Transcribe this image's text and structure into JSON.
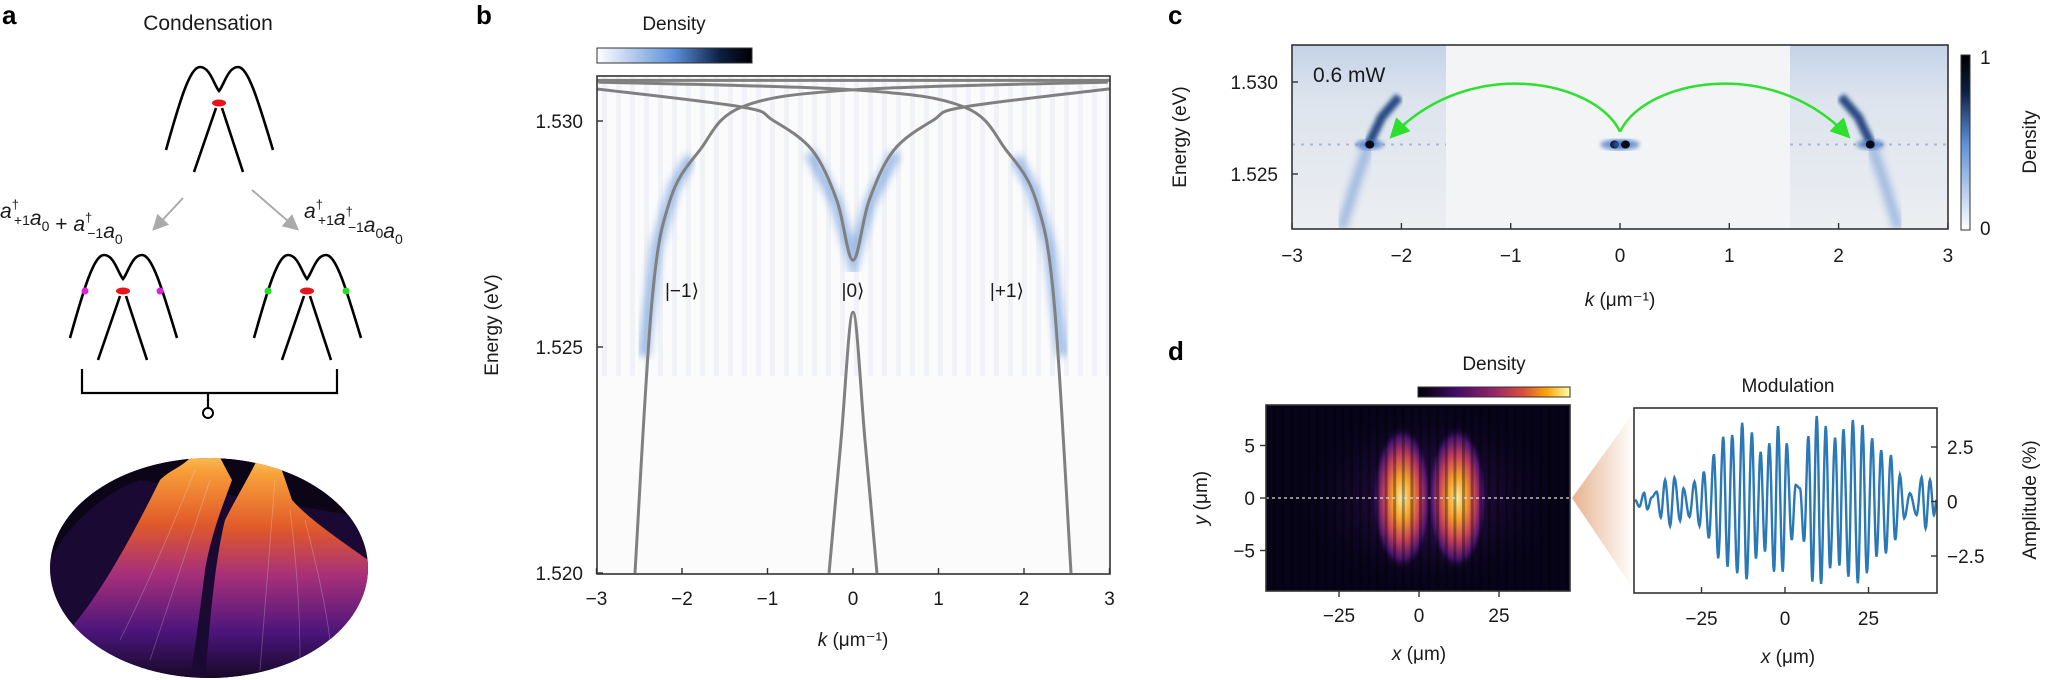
{
  "panel_a": {
    "label": "a",
    "title": "Condensation",
    "left_operator": [
      {
        "base": "a",
        "sup": "†",
        "sub": "+1"
      },
      {
        "base": "a",
        "sub": "0"
      },
      {
        "text": " + "
      },
      {
        "base": "a",
        "sup": "†",
        "sub": "−1"
      },
      {
        "base": "a",
        "sub": "0"
      }
    ],
    "right_operator": [
      {
        "base": "a",
        "sup": "†",
        "sub": "+1"
      },
      {
        "base": "a",
        "sup": "†",
        "sub": "−1"
      },
      {
        "base": "a",
        "sub": "0"
      },
      {
        "base": "a",
        "sub": "0"
      }
    ],
    "colors": {
      "condensate": "#e8141b",
      "left_pair": "#e020e0",
      "right_pair": "#20e020",
      "arrow": "#aaaaaa"
    }
  },
  "chart_data": [
    {
      "panel_label": "b",
      "type": "heatmap",
      "colorbar_label": "Density",
      "colormap": [
        "#ffffff",
        "#5b8fd8",
        "#0b1d40",
        "#000000"
      ],
      "xlabel_var": "k",
      "xlabel_unit": " (μm⁻¹)",
      "ylabel": "Energy (eV)",
      "xlim": [
        -3,
        3
      ],
      "ylim": [
        1.52,
        1.531
      ],
      "xticks": [
        -3,
        -2,
        -1,
        0,
        1,
        2,
        3
      ],
      "xtick_labels": [
        "−3",
        "−2",
        "−1",
        "0",
        "1",
        "2",
        "3"
      ],
      "yticks": [
        1.52,
        1.525,
        1.53
      ],
      "ytick_labels": [
        "1.520",
        "1.525",
        "1.530"
      ],
      "state_labels": [
        {
          "text": "|−1⟩",
          "k": -2.0
        },
        {
          "text": "|0⟩",
          "k": 0
        },
        {
          "text": "|+1⟩",
          "k": 1.8
        }
      ],
      "dispersion_curves": [
        {
          "points": [
            [
              -3,
              1.5309
            ],
            [
              3,
              1.5309
            ]
          ]
        },
        {
          "points": [
            [
              -2.55,
              1.52
            ],
            [
              -2.35,
              1.52604
            ],
            [
              -2.14,
              1.52825
            ],
            [
              -1.79,
              1.52936
            ],
            [
              -1.3,
              1.53031
            ],
            [
              0,
              1.53069
            ],
            [
              2.98,
              1.53086
            ]
          ]
        },
        {
          "points": [
            [
              2.55,
              1.52
            ],
            [
              2.35,
              1.52604
            ],
            [
              2.14,
              1.52825
            ],
            [
              1.79,
              1.52936
            ],
            [
              1.3,
              1.53031
            ],
            [
              0,
              1.53069
            ],
            [
              -2.98,
              1.53086
            ]
          ]
        },
        {
          "points": [
            [
              -3,
              1.53071
            ],
            [
              -1.3,
              1.53031
            ],
            [
              -0.94,
              1.53002
            ],
            [
              -0.48,
              1.52936
            ],
            [
              -0.19,
              1.52825
            ],
            [
              0,
              1.52692
            ],
            [
              0.19,
              1.52825
            ],
            [
              0.48,
              1.52936
            ],
            [
              0.94,
              1.53002
            ],
            [
              1.3,
              1.53031
            ],
            [
              3,
              1.53071
            ]
          ]
        },
        {
          "points": [
            [
              -0.28,
              1.52
            ],
            [
              -0.14,
              1.52294
            ],
            [
              0,
              1.52577
            ],
            [
              0.14,
              1.52294
            ],
            [
              0.28,
              1.52
            ]
          ]
        }
      ]
    },
    {
      "panel_label": "c",
      "type": "heatmap",
      "annotation": "0.6 mW",
      "colorbar_label": "Density",
      "colorbar_ticks": [
        "0",
        "1"
      ],
      "xlabel_var": "k",
      "xlabel_unit": " (μm⁻¹)",
      "ylabel": "Energy (eV)",
      "xlim": [
        -3,
        3
      ],
      "ylim": [
        1.522,
        1.532
      ],
      "xticks": [
        -3,
        -2,
        -1,
        0,
        1,
        2,
        3
      ],
      "xtick_labels": [
        "−3",
        "−2",
        "−1",
        "0",
        "1",
        "2",
        "3"
      ],
      "yticks": [
        1.525,
        1.53
      ],
      "ytick_labels": [
        "1.525",
        "1.530"
      ],
      "bright_spots": [
        {
          "k": -0.05,
          "E": 1.5266
        },
        {
          "k": 0.05,
          "E": 1.5266
        },
        {
          "k": -2.29,
          "E": 1.5266
        },
        {
          "k": 2.29,
          "E": 1.5266
        }
      ],
      "arrow_color": "#2ee02e"
    },
    {
      "panel_label": "d",
      "type": "heatmap",
      "colorbar_label": "Density",
      "colormap": [
        "#000004",
        "#420a68",
        "#932667",
        "#dd513a",
        "#fca50a",
        "#fcffa4"
      ],
      "xlabel_var": "x",
      "xlabel_unit": " (μm)",
      "ylabel_var": "y",
      "ylabel_unit": " (μm)",
      "xlim": [
        -47,
        47
      ],
      "ylim": [
        -8.9,
        8.9
      ],
      "xticks": [
        -25,
        0,
        25
      ],
      "xtick_labels": [
        "−25",
        "0",
        "25"
      ],
      "yticks": [
        5,
        0,
        -5
      ],
      "ytick_labels": [
        "5",
        "0",
        "−5"
      ],
      "lobes": [
        {
          "x": -5.3,
          "y": 0
        },
        {
          "x": 11.9,
          "y": 0
        }
      ]
    },
    {
      "type": "line",
      "title": "Modulation",
      "xlabel_var": "x",
      "xlabel_unit": " (μm)",
      "ylabel": "Amplitude (%)",
      "xlim": [
        -45.5,
        45.5
      ],
      "ylim": [
        -4.2,
        4.3
      ],
      "xticks": [
        -25,
        0,
        25
      ],
      "xtick_labels": [
        "−25",
        "0",
        "25"
      ],
      "yticks": [
        2.5,
        0,
        -2.5
      ],
      "ytick_labels": [
        "2.5",
        "0",
        "−2.5"
      ],
      "color": "#2a78b5",
      "series": [
        {
          "x": [
            -44.9,
            -43.6,
            -42.2,
            -41.2,
            -39.9,
            -38.4,
            -37.2,
            -35.9,
            -34.4,
            -33.1,
            -31.4,
            -30.4,
            -28.6,
            -27.1,
            -25.6,
            -24.3,
            -22.8,
            -21.3,
            -20.0,
            -18.5,
            -17.2,
            -15.8,
            -14.3,
            -12.8,
            -11.5,
            -9.9,
            -8.7,
            -7.3,
            -6.0,
            -4.7,
            -3.3,
            -2.1,
            -0.7,
            0.5,
            2.0,
            3.2,
            4.5,
            5.7,
            7.0,
            8.2,
            9.5,
            10.8,
            12.2,
            13.5,
            15.0,
            16.3,
            17.5,
            19.0,
            20.3,
            21.8,
            23.2,
            24.5,
            26.1,
            27.4,
            28.8,
            30.2,
            31.7,
            33.0,
            34.4,
            35.7,
            37.4,
            39.4,
            40.9,
            42.1,
            43.4,
            44.6,
            45.4
          ],
          "y": [
            0.07,
            -0.24,
            0.4,
            -0.36,
            0.19,
            0.45,
            -0.73,
            0.99,
            -1.12,
            1.09,
            -0.88,
            0.6,
            -0.7,
            0.91,
            -1.12,
            1.37,
            -1.69,
            2.17,
            -2.61,
            2.97,
            -2.99,
            3.05,
            -3.29,
            3.61,
            -3.57,
            3.17,
            -2.62,
            2.28,
            -2.3,
            2.67,
            -3.22,
            3.46,
            -3.22,
            2.67,
            -1.77,
            0.76,
            0.6,
            -1.84,
            3.0,
            -3.68,
            3.92,
            -3.78,
            3.46,
            -3.06,
            2.93,
            -2.94,
            3.31,
            -3.45,
            3.74,
            -3.75,
            3.51,
            -3.29,
            2.9,
            -2.53,
            2.36,
            -2.38,
            2.13,
            -1.77,
            1.22,
            -0.77,
            0.38,
            -0.62,
            1.11,
            -1.23,
            0.99,
            -0.62,
            0.07
          ]
        }
      ]
    }
  ]
}
